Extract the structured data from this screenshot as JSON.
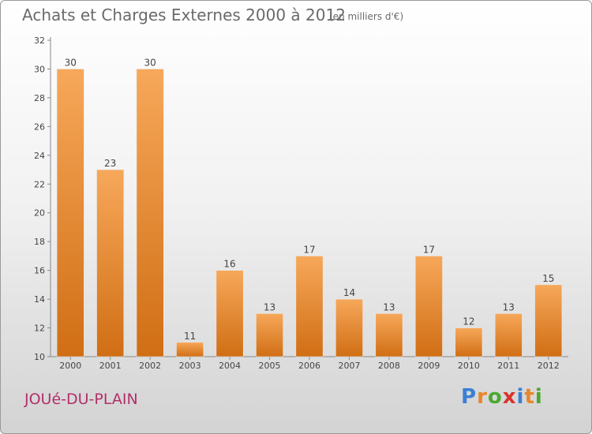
{
  "chart_data": {
    "type": "bar",
    "title": "Achats et Charges Externes 2000 à 2012",
    "subtitle": "(en milliers d'€)",
    "categories": [
      "2000",
      "2001",
      "2002",
      "2003",
      "2004",
      "2005",
      "2006",
      "2007",
      "2008",
      "2009",
      "2010",
      "2011",
      "2012"
    ],
    "values": [
      30,
      23,
      30,
      11,
      16,
      13,
      17,
      14,
      13,
      17,
      12,
      13,
      15
    ],
    "data_labels": [
      "30",
      "23",
      "30",
      "11",
      "16",
      "13",
      "17",
      "14",
      "13",
      "17",
      "12",
      "13",
      "15"
    ],
    "ylim": [
      10,
      32
    ],
    "yticks": [
      10,
      12,
      14,
      16,
      18,
      20,
      22,
      24,
      26,
      28,
      30,
      32
    ],
    "grid": false,
    "bar_color_top": "#f7a85a",
    "bar_color_bottom": "#d06e14"
  },
  "footer": {
    "city": "JOUé-DU-PLAIN",
    "logo_letters": [
      "P",
      "r",
      "o",
      "x",
      "i",
      "t",
      "i"
    ],
    "logo_colors": [
      "#3a7fd4",
      "#e8862a",
      "#4aa832",
      "#d8342c",
      "#3a7fd4",
      "#e8862a",
      "#4aa832"
    ]
  },
  "colors": {
    "title": "#6a6a6a",
    "city": "#b0306a"
  }
}
